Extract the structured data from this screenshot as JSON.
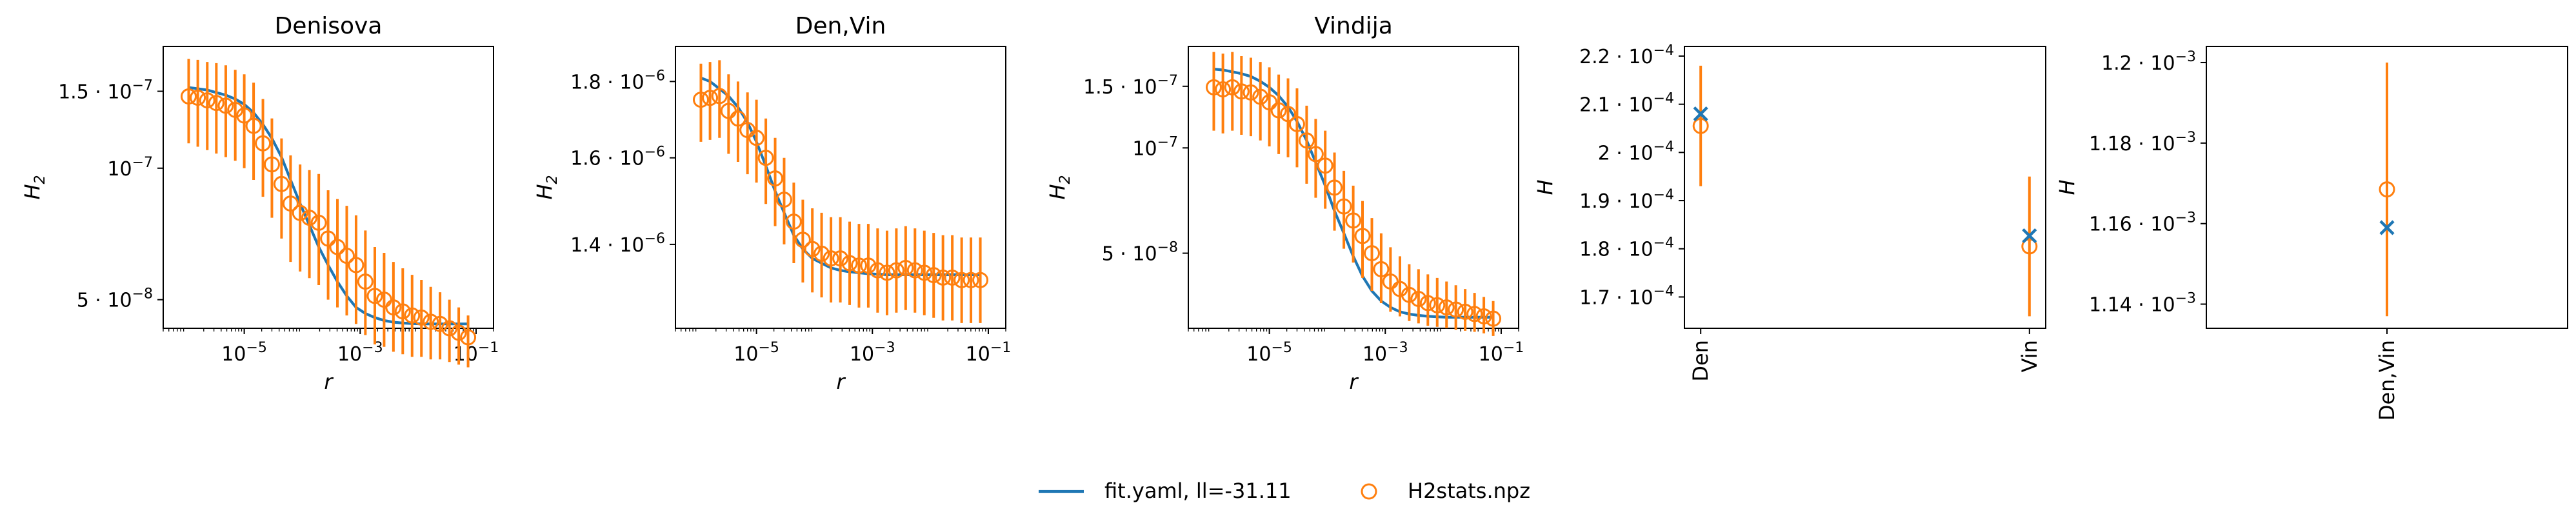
{
  "colors": {
    "model": "#1f77b4",
    "data": "#ff7f0e",
    "axis": "#000000"
  },
  "legend": {
    "placement": "bottom-center",
    "model_label": "fit.yaml, ll=-31.11",
    "data_label": "H2stats.npz"
  },
  "chart_data": [
    {
      "type": "line",
      "title": "Denisova",
      "xlabel": "r",
      "ylabel": "H_2",
      "xscale": "log",
      "yscale": "log",
      "xlim": [
        4e-07,
        0.2
      ],
      "ylim": [
        4.3e-08,
        1.9e-07
      ],
      "x_ticks": [
        {
          "v": 1e-05,
          "b": "10",
          "e": "−5"
        },
        {
          "v": 0.001,
          "b": "10",
          "e": "−3"
        },
        {
          "v": 0.1,
          "b": "10",
          "e": "−1"
        }
      ],
      "y_ticks": [
        {
          "v": 1.5e-07,
          "m": "1.5 · 10",
          "e": "−7"
        },
        {
          "v": 1e-07,
          "m": "10",
          "e": "−7"
        },
        {
          "v": 5e-08,
          "m": "5 · 10",
          "e": "−8"
        }
      ],
      "x": [
        1.1e-06,
        1.58e-06,
        2.3e-06,
        3.3e-06,
        4.8e-06,
        7e-06,
        1e-05,
        1.45e-05,
        2.1e-05,
        3e-05,
        4.4e-05,
        6.3e-05,
        9.2e-05,
        0.000133,
        0.000193,
        0.00028,
        0.000405,
        0.000587,
        0.00085,
        0.00123,
        0.00179,
        0.00259,
        0.00375,
        0.00543,
        0.00787,
        0.0114,
        0.0165,
        0.0239,
        0.0347,
        0.0502,
        0.0728
      ],
      "series": [
        {
          "name": "fit.yaml, ll=-31.11",
          "kind": "model",
          "values": [
            1.53e-07,
            1.52e-07,
            1.51e-07,
            1.49e-07,
            1.47e-07,
            1.44e-07,
            1.4e-07,
            1.34e-07,
            1.26e-07,
            1.17e-07,
            1.06e-07,
            9.4e-08,
            8.3e-08,
            7.4e-08,
            6.6e-08,
            6e-08,
            5.5e-08,
            5.1e-08,
            4.8e-08,
            4.65e-08,
            4.55e-08,
            4.48e-08,
            4.44e-08,
            4.42e-08,
            4.41e-08,
            4.4e-08,
            4.4e-08,
            4.4e-08,
            4.4e-08,
            4.4e-08,
            4.4e-08
          ]
        },
        {
          "name": "H2stats.npz",
          "kind": "data",
          "values": [
            1.46e-07,
            1.45e-07,
            1.43e-07,
            1.41e-07,
            1.39e-07,
            1.36e-07,
            1.32e-07,
            1.25e-07,
            1.14e-07,
            1.02e-07,
            9.2e-08,
            8.3e-08,
            7.9e-08,
            7.7e-08,
            7.5e-08,
            6.9e-08,
            6.6e-08,
            6.3e-08,
            6e-08,
            5.5e-08,
            5.1e-08,
            5e-08,
            4.8e-08,
            4.7e-08,
            4.6e-08,
            4.55e-08,
            4.45e-08,
            4.4e-08,
            4.3e-08,
            4.2e-08,
            4.1e-08
          ],
          "lower": [
            1.14e-07,
            1.12e-07,
            1.1e-07,
            1.08e-07,
            1.06e-07,
            1.04e-07,
            1e-07,
            9.4e-08,
            8.6e-08,
            7.7e-08,
            6.9e-08,
            6.1e-08,
            5.8e-08,
            5.6e-08,
            5.4e-08,
            5e-08,
            4.8e-08,
            4.6e-08,
            4.4e-08,
            4.15e-08,
            3.95e-08,
            3.9e-08,
            3.8e-08,
            3.75e-08,
            3.7e-08,
            3.7e-08,
            3.65e-08,
            3.65e-08,
            3.6e-08,
            3.55e-08,
            3.5e-08
          ],
          "upper": [
            1.78e-07,
            1.77e-07,
            1.75e-07,
            1.74e-07,
            1.72e-07,
            1.68e-07,
            1.64e-07,
            1.57e-07,
            1.44e-07,
            1.3e-07,
            1.17e-07,
            1.07e-07,
            1.02e-07,
            9.9e-08,
            9.7e-08,
            8.9e-08,
            8.5e-08,
            8.2e-08,
            7.8e-08,
            7.2e-08,
            6.6e-08,
            6.4e-08,
            6.1e-08,
            5.9e-08,
            5.7e-08,
            5.55e-08,
            5.35e-08,
            5.2e-08,
            5e-08,
            4.8e-08,
            4.6e-08
          ]
        }
      ]
    },
    {
      "type": "line",
      "title": "Den,Vin",
      "xlabel": "r",
      "ylabel": "H_2",
      "xscale": "log",
      "yscale": "log",
      "xlim": [
        4e-07,
        0.2
      ],
      "ylim": [
        1.23e-06,
        1.9e-06
      ],
      "x_ticks": [
        {
          "v": 1e-05,
          "b": "10",
          "e": "−5"
        },
        {
          "v": 0.001,
          "b": "10",
          "e": "−3"
        },
        {
          "v": 0.1,
          "b": "10",
          "e": "−1"
        }
      ],
      "y_ticks": [
        {
          "v": 1.8e-06,
          "m": "1.8 · 10",
          "e": "−6"
        },
        {
          "v": 1.6e-06,
          "m": "1.6 · 10",
          "e": "−6"
        },
        {
          "v": 1.4e-06,
          "m": "1.4 · 10",
          "e": "−6"
        }
      ],
      "x": [
        1.1e-06,
        1.58e-06,
        2.3e-06,
        3.3e-06,
        4.8e-06,
        7e-06,
        1e-05,
        1.45e-05,
        2.1e-05,
        3e-05,
        4.4e-05,
        6.3e-05,
        9.2e-05,
        0.000133,
        0.000193,
        0.00028,
        0.000405,
        0.000587,
        0.00085,
        0.00123,
        0.00179,
        0.00259,
        0.00375,
        0.00543,
        0.00787,
        0.0114,
        0.0165,
        0.0239,
        0.0347,
        0.0502,
        0.0728
      ],
      "series": [
        {
          "name": "fit.yaml, ll=-31.11",
          "kind": "model",
          "values": [
            1.81e-06,
            1.8e-06,
            1.78e-06,
            1.76e-06,
            1.73e-06,
            1.69e-06,
            1.64e-06,
            1.58e-06,
            1.52e-06,
            1.47e-06,
            1.42e-06,
            1.39e-06,
            1.37e-06,
            1.36e-06,
            1.35e-06,
            1.345e-06,
            1.342e-06,
            1.34e-06,
            1.338e-06,
            1.337e-06,
            1.336e-06,
            1.336e-06,
            1.336e-06,
            1.336e-06,
            1.336e-06,
            1.336e-06,
            1.336e-06,
            1.336e-06,
            1.336e-06,
            1.336e-06,
            1.336e-06
          ]
        },
        {
          "name": "H2stats.npz",
          "kind": "data",
          "values": [
            1.75e-06,
            1.755e-06,
            1.76e-06,
            1.72e-06,
            1.7e-06,
            1.67e-06,
            1.65e-06,
            1.6e-06,
            1.55e-06,
            1.5e-06,
            1.45e-06,
            1.41e-06,
            1.39e-06,
            1.38e-06,
            1.37e-06,
            1.37e-06,
            1.36e-06,
            1.355e-06,
            1.355e-06,
            1.345e-06,
            1.34e-06,
            1.345e-06,
            1.35e-06,
            1.345e-06,
            1.34e-06,
            1.335e-06,
            1.33e-06,
            1.33e-06,
            1.325e-06,
            1.325e-06,
            1.325e-06
          ],
          "lower": [
            1.64e-06,
            1.645e-06,
            1.65e-06,
            1.61e-06,
            1.59e-06,
            1.56e-06,
            1.54e-06,
            1.49e-06,
            1.44e-06,
            1.4e-06,
            1.36e-06,
            1.32e-06,
            1.3e-06,
            1.29e-06,
            1.28e-06,
            1.28e-06,
            1.275e-06,
            1.27e-06,
            1.27e-06,
            1.26e-06,
            1.255e-06,
            1.26e-06,
            1.265e-06,
            1.26e-06,
            1.255e-06,
            1.25e-06,
            1.245e-06,
            1.245e-06,
            1.24e-06,
            1.24e-06,
            1.24e-06
          ],
          "upper": [
            1.85e-06,
            1.855e-06,
            1.86e-06,
            1.82e-06,
            1.8e-06,
            1.77e-06,
            1.75e-06,
            1.7e-06,
            1.65e-06,
            1.6e-06,
            1.54e-06,
            1.5e-06,
            1.48e-06,
            1.47e-06,
            1.46e-06,
            1.46e-06,
            1.45e-06,
            1.445e-06,
            1.445e-06,
            1.435e-06,
            1.43e-06,
            1.435e-06,
            1.44e-06,
            1.435e-06,
            1.43e-06,
            1.425e-06,
            1.42e-06,
            1.42e-06,
            1.415e-06,
            1.415e-06,
            1.415e-06
          ]
        }
      ]
    },
    {
      "type": "line",
      "title": "Vindija",
      "xlabel": "r",
      "ylabel": "H_2",
      "xscale": "log",
      "yscale": "log",
      "xlim": [
        4e-07,
        0.2
      ],
      "ylim": [
        3.05e-08,
        1.95e-07
      ],
      "x_ticks": [
        {
          "v": 1e-05,
          "b": "10",
          "e": "−5"
        },
        {
          "v": 0.001,
          "b": "10",
          "e": "−3"
        },
        {
          "v": 0.1,
          "b": "10",
          "e": "−1"
        }
      ],
      "y_ticks": [
        {
          "v": 1.5e-07,
          "m": "1.5 · 10",
          "e": "−7"
        },
        {
          "v": 1e-07,
          "m": "10",
          "e": "−7"
        },
        {
          "v": 5e-08,
          "m": "5 · 10",
          "e": "−8"
        }
      ],
      "x": [
        1.1e-06,
        1.58e-06,
        2.3e-06,
        3.3e-06,
        4.8e-06,
        7e-06,
        1e-05,
        1.45e-05,
        2.1e-05,
        3e-05,
        4.4e-05,
        6.3e-05,
        9.2e-05,
        0.000133,
        0.000193,
        0.00028,
        0.000405,
        0.000587,
        0.00085,
        0.00123,
        0.00179,
        0.00259,
        0.00375,
        0.00543,
        0.00787,
        0.0114,
        0.0165,
        0.0239,
        0.0347,
        0.0502,
        0.0728
      ],
      "series": [
        {
          "name": "fit.yaml, ll=-31.11",
          "kind": "model",
          "values": [
            1.68e-07,
            1.67e-07,
            1.65e-07,
            1.63e-07,
            1.6e-07,
            1.55e-07,
            1.49e-07,
            1.41e-07,
            1.31e-07,
            1.19e-07,
            1.05e-07,
            9.1e-08,
            7.8e-08,
            6.6e-08,
            5.7e-08,
            4.9e-08,
            4.3e-08,
            3.9e-08,
            3.65e-08,
            3.5e-08,
            3.4e-08,
            3.35e-08,
            3.32e-08,
            3.3e-08,
            3.29e-08,
            3.28e-08,
            3.28e-08,
            3.28e-08,
            3.28e-08,
            3.28e-08,
            3.28e-08
          ]
        },
        {
          "name": "H2stats.npz",
          "kind": "data",
          "values": [
            1.49e-07,
            1.47e-07,
            1.49e-07,
            1.45e-07,
            1.44e-07,
            1.4e-07,
            1.35e-07,
            1.28e-07,
            1.25e-07,
            1.17e-07,
            1.05e-07,
            9.6e-08,
            8.9e-08,
            7.7e-08,
            6.8e-08,
            6.2e-08,
            5.6e-08,
            5e-08,
            4.5e-08,
            4.15e-08,
            3.95e-08,
            3.8e-08,
            3.7e-08,
            3.6e-08,
            3.55e-08,
            3.5e-08,
            3.45e-08,
            3.4e-08,
            3.35e-08,
            3.3e-08,
            3.25e-08
          ],
          "lower": [
            1.12e-07,
            1.1e-07,
            1.12e-07,
            1.09e-07,
            1.08e-07,
            1.05e-07,
            1.01e-07,
            9.6e-08,
            9.4e-08,
            8.8e-08,
            7.9e-08,
            7.2e-08,
            6.7e-08,
            5.8e-08,
            5.15e-08,
            4.7e-08,
            4.25e-08,
            3.9e-08,
            3.6e-08,
            3.4e-08,
            3.3e-08,
            3.2e-08,
            3.15e-08,
            3.1e-08,
            3.08e-08,
            3.05e-08,
            3.02e-08,
            3e-08,
            2.98e-08,
            2.95e-08,
            2.9e-08
          ],
          "upper": [
            1.88e-07,
            1.86e-07,
            1.88e-07,
            1.83e-07,
            1.81e-07,
            1.76e-07,
            1.7e-07,
            1.62e-07,
            1.58e-07,
            1.48e-07,
            1.32e-07,
            1.21e-07,
            1.12e-07,
            9.7e-08,
            8.6e-08,
            7.8e-08,
            7.05e-08,
            6.3e-08,
            5.7e-08,
            5.2e-08,
            4.9e-08,
            4.65e-08,
            4.5e-08,
            4.35e-08,
            4.25e-08,
            4.15e-08,
            4.05e-08,
            3.95e-08,
            3.85e-08,
            3.75e-08,
            3.65e-08
          ]
        }
      ]
    },
    {
      "type": "scatter",
      "title": "",
      "xlabel": "",
      "ylabel": "H",
      "categories": [
        "Den",
        "Vin"
      ],
      "ylim": [
        0.0001635,
        0.000222
      ],
      "y_ticks": [
        {
          "v": 0.00022,
          "m": "2.2 · 10",
          "e": "−4"
        },
        {
          "v": 0.00021,
          "m": "2.1 · 10",
          "e": "−4"
        },
        {
          "v": 0.0002,
          "m": "2 · 10",
          "e": "−4"
        },
        {
          "v": 0.00019,
          "m": "1.9 · 10",
          "e": "−4"
        },
        {
          "v": 0.00018,
          "m": "1.8 · 10",
          "e": "−4"
        },
        {
          "v": 0.00017,
          "m": "1.7 · 10",
          "e": "−4"
        }
      ],
      "series": [
        {
          "name": "fit.yaml, ll=-31.11",
          "kind": "model",
          "values": [
            0.000208,
            0.0001827
          ]
        },
        {
          "name": "H2stats.npz",
          "kind": "data",
          "values": [
            0.0002055,
            0.0001805
          ],
          "lower": [
            0.000193,
            0.000166
          ],
          "upper": [
            0.000218,
            0.000195
          ]
        }
      ]
    },
    {
      "type": "scatter",
      "title": "",
      "xlabel": "",
      "ylabel": "H",
      "categories": [
        "Den,Vin"
      ],
      "ylim": [
        0.001134,
        0.001204
      ],
      "y_ticks": [
        {
          "v": 0.0012,
          "m": "1.2 · 10",
          "e": "−3"
        },
        {
          "v": 0.00118,
          "m": "1.18 · 10",
          "e": "−3"
        },
        {
          "v": 0.00116,
          "m": "1.16 · 10",
          "e": "−3"
        },
        {
          "v": 0.00114,
          "m": "1.14 · 10",
          "e": "−3"
        }
      ],
      "series": [
        {
          "name": "fit.yaml, ll=-31.11",
          "kind": "model",
          "values": [
            0.001159
          ]
        },
        {
          "name": "H2stats.npz",
          "kind": "data",
          "values": [
            0.0011685
          ],
          "lower": [
            0.001137
          ],
          "upper": [
            0.0012
          ]
        }
      ]
    }
  ]
}
